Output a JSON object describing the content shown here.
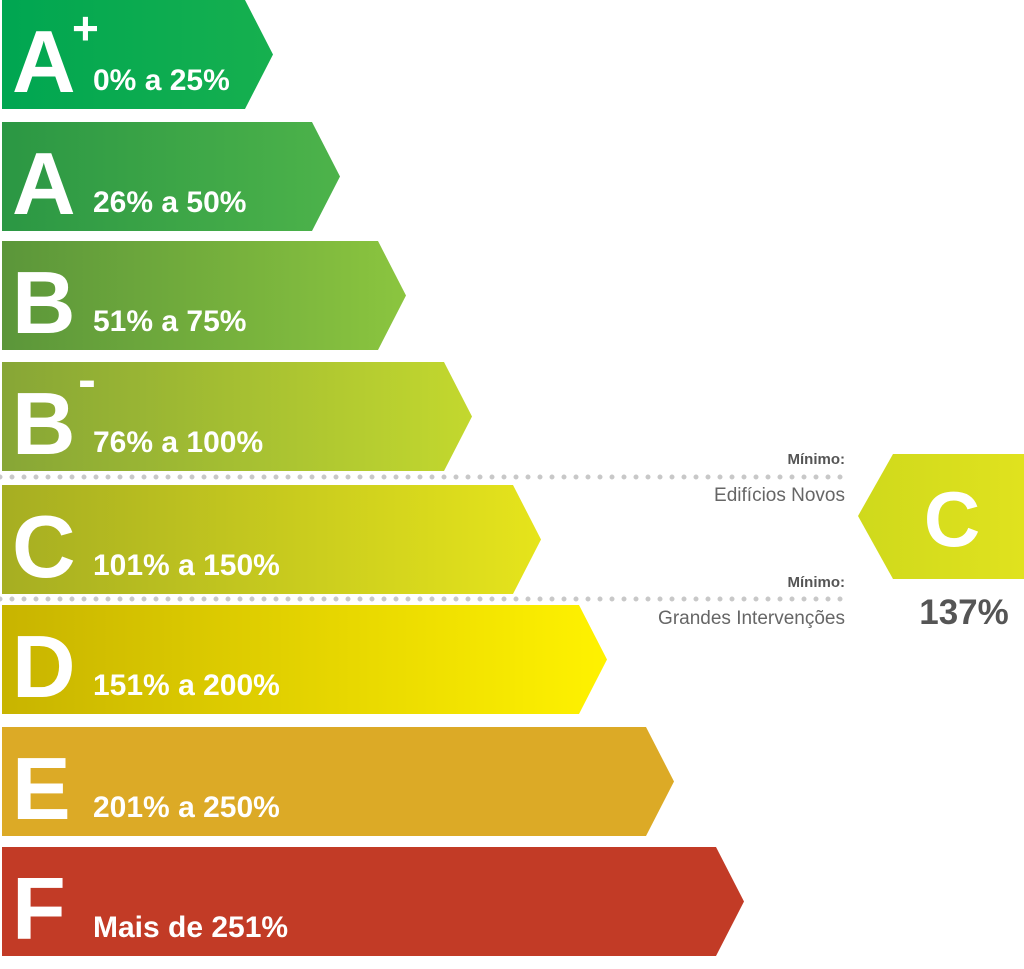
{
  "bands": [
    {
      "letter": "A",
      "superscript": "+",
      "range": "0% a 25%"
    },
    {
      "letter": "A",
      "range": "26% a 50%"
    },
    {
      "letter": "B",
      "range": "51% a 75%"
    },
    {
      "letter": "B",
      "superscript": "-",
      "range": "76% a 100%"
    },
    {
      "letter": "C",
      "range": "101% a 150%"
    },
    {
      "letter": "D",
      "range": "151% a 200%"
    },
    {
      "letter": "E",
      "range": "201% a 250%"
    },
    {
      "letter": "F",
      "range": "Mais de 251%"
    }
  ],
  "thresholds": [
    {
      "title": "Mínimo:",
      "label": "Edifícios Novos"
    },
    {
      "title": "Mínimo:",
      "label": "Grandes Intervenções"
    }
  ],
  "rating": {
    "letter": "C",
    "value": "137%"
  }
}
